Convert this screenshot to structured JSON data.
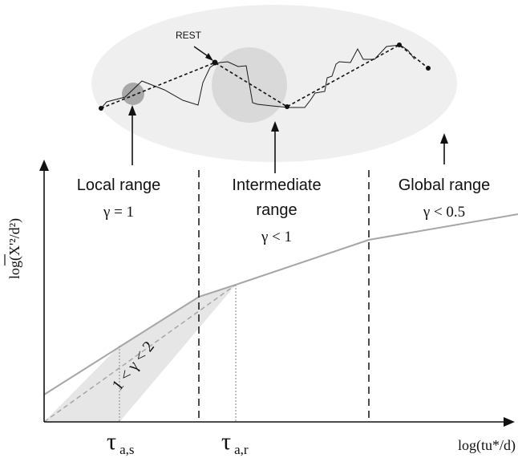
{
  "top_panel": {
    "rest_label": "REST"
  },
  "regions": {
    "local": {
      "name": "Local range",
      "gamma": "γ = 1"
    },
    "intermediate": {
      "name_line1": "Intermediate",
      "name_line2": "range",
      "gamma": "γ < 1"
    },
    "global": {
      "name": "Global range",
      "gamma": "γ < 0.5"
    }
  },
  "axes": {
    "ylabel": "log(X'²/d²)",
    "xlabel": "log(tu*/d)"
  },
  "band_label": "1 < γ < 2",
  "ticks": {
    "tau_s_main": "τ",
    "tau_s_sub": "a,s",
    "tau_r_main": "τ",
    "tau_r_sub": "a,r"
  },
  "colors": {
    "ellipse": "#efefef",
    "circle": "#d9d9d9",
    "curve": "#a6a6a6",
    "band": "#e6e6e6"
  }
}
